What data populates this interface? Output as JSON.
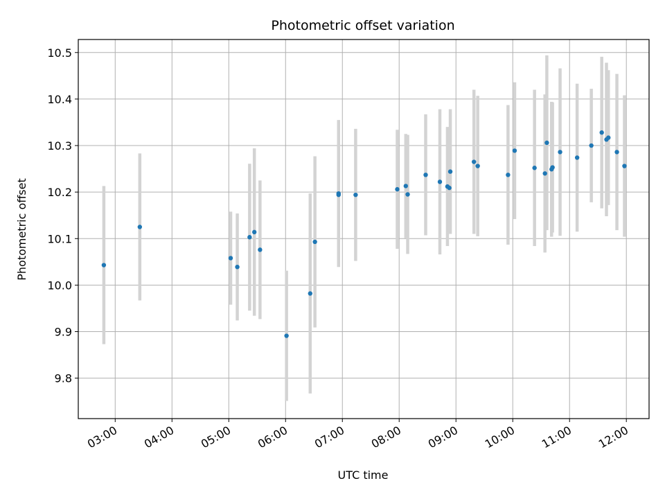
{
  "chart_data": {
    "type": "scatter",
    "title": "Photometric offset variation",
    "xlabel": "UTC time",
    "ylabel": "Photometric offset",
    "x_ticks": [
      "03:00",
      "04:00",
      "05:00",
      "06:00",
      "07:00",
      "08:00",
      "09:00",
      "10:00",
      "11:00",
      "12:00"
    ],
    "y_ticks": [
      "9.8",
      "9.9",
      "10.0",
      "10.1",
      "10.2",
      "10.3",
      "10.4",
      "10.5"
    ],
    "xlim": [
      "02:21",
      "12:24"
    ],
    "ylim": [
      9.713,
      10.528
    ],
    "grid": true,
    "colors": {
      "points": "#1f77b4",
      "errorbars": "#d3d3d3",
      "grid": "#b0b0b0"
    },
    "series": [
      {
        "points": [
          {
            "x": "02:48",
            "y": 10.043,
            "yerr": 0.17
          },
          {
            "x": "03:26",
            "y": 10.125,
            "yerr": 0.158
          },
          {
            "x": "05:02",
            "y": 10.058,
            "yerr": 0.1
          },
          {
            "x": "05:09",
            "y": 10.039,
            "yerr": 0.115
          },
          {
            "x": "05:22",
            "y": 10.103,
            "yerr": 0.158
          },
          {
            "x": "05:27",
            "y": 10.114,
            "yerr": 0.18
          },
          {
            "x": "05:33",
            "y": 10.076,
            "yerr": 0.149
          },
          {
            "x": "06:01",
            "y": 9.891,
            "yerr": 0.14
          },
          {
            "x": "06:26",
            "y": 9.982,
            "yerr": 0.215
          },
          {
            "x": "06:31",
            "y": 10.093,
            "yerr": 0.184
          },
          {
            "x": "06:56",
            "y": 10.197,
            "yerr": 0.158
          },
          {
            "x": "06:56",
            "y": 10.194,
            "yerr": 0.1
          },
          {
            "x": "07:14",
            "y": 10.194,
            "yerr": 0.142
          },
          {
            "x": "07:58",
            "y": 10.206,
            "yerr": 0.128
          },
          {
            "x": "08:07",
            "y": 10.213,
            "yerr": 0.112
          },
          {
            "x": "08:09",
            "y": 10.195,
            "yerr": 0.128
          },
          {
            "x": "08:28",
            "y": 10.237,
            "yerr": 0.13
          },
          {
            "x": "08:43",
            "y": 10.222,
            "yerr": 0.156
          },
          {
            "x": "08:51",
            "y": 10.212,
            "yerr": 0.128
          },
          {
            "x": "08:53",
            "y": 10.209,
            "yerr": 0.096
          },
          {
            "x": "08:54",
            "y": 10.244,
            "yerr": 0.134
          },
          {
            "x": "09:19",
            "y": 10.265,
            "yerr": 0.155
          },
          {
            "x": "09:23",
            "y": 10.256,
            "yerr": 0.151
          },
          {
            "x": "09:55",
            "y": 10.237,
            "yerr": 0.15
          },
          {
            "x": "10:02",
            "y": 10.289,
            "yerr": 0.147
          },
          {
            "x": "10:23",
            "y": 10.252,
            "yerr": 0.168
          },
          {
            "x": "10:34",
            "y": 10.24,
            "yerr": 0.17
          },
          {
            "x": "10:36",
            "y": 10.306,
            "yerr": 0.188
          },
          {
            "x": "10:41",
            "y": 10.249,
            "yerr": 0.145
          },
          {
            "x": "10:42",
            "y": 10.253,
            "yerr": 0.14
          },
          {
            "x": "10:50",
            "y": 10.286,
            "yerr": 0.18
          },
          {
            "x": "11:08",
            "y": 10.274,
            "yerr": 0.159
          },
          {
            "x": "11:23",
            "y": 10.3,
            "yerr": 0.122
          },
          {
            "x": "11:34",
            "y": 10.328,
            "yerr": 0.163
          },
          {
            "x": "11:39",
            "y": 10.313,
            "yerr": 0.165
          },
          {
            "x": "11:41",
            "y": 10.317,
            "yerr": 0.145
          },
          {
            "x": "11:50",
            "y": 10.286,
            "yerr": 0.168
          },
          {
            "x": "11:58",
            "y": 10.256,
            "yerr": 0.152
          }
        ]
      }
    ]
  }
}
